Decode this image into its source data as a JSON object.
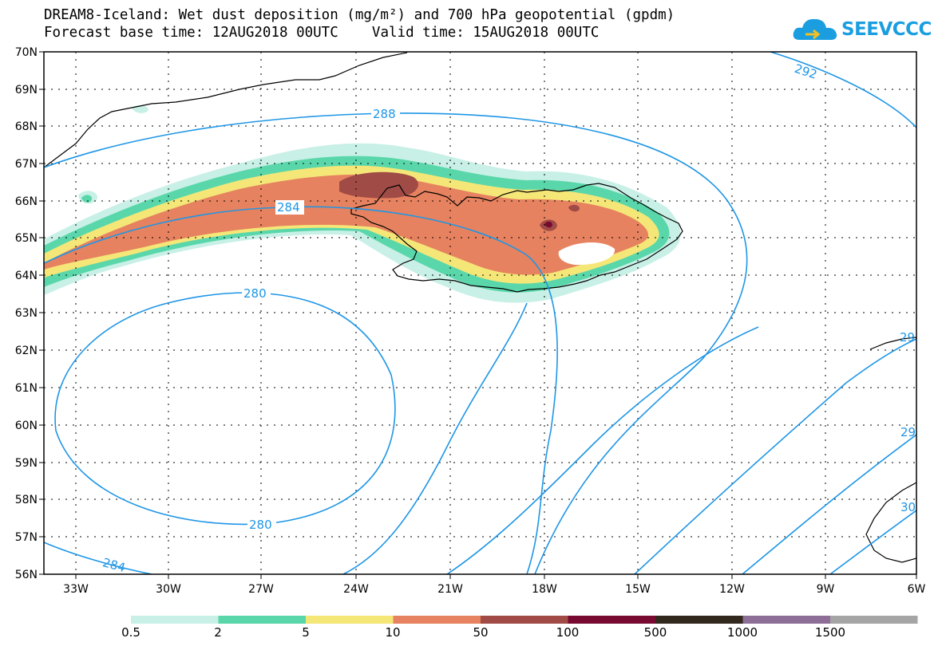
{
  "title": {
    "line1": "DREAM8-Iceland: Wet dust deposition (mg/m²) and 700 hPa geopotential (gpdm)",
    "forecast_label": "Forecast base time: 12AUG2018 00UTC",
    "valid_label": "Valid time: 15AUG2018 00UTC"
  },
  "logo": {
    "text": "SEEVCCC",
    "color": "#1a9ee0"
  },
  "map": {
    "lat_labels": [
      "70N",
      "69N",
      "68N",
      "67N",
      "66N",
      "65N",
      "64N",
      "63N",
      "62N",
      "61N",
      "60N",
      "59N",
      "58N",
      "57N",
      "56N"
    ],
    "lon_labels": [
      "33W",
      "30W",
      "27W",
      "24W",
      "21W",
      "18W",
      "15W",
      "12W",
      "9W",
      "6W"
    ],
    "contour_labels": [
      "292",
      "288",
      "284",
      "280",
      "280",
      "284",
      "29",
      "29",
      "30"
    ],
    "contour_color": "#1e96e6"
  },
  "colorbar": {
    "labels": [
      "0.5",
      "2",
      "5",
      "10",
      "50",
      "100",
      "500",
      "1000",
      "1500"
    ],
    "colors": [
      "#c8f0e6",
      "#5ad7aa",
      "#f5e678",
      "#e6825f",
      "#a04b46",
      "#780a32",
      "#32281e",
      "#8c6e96",
      "#a5a5a5"
    ]
  }
}
